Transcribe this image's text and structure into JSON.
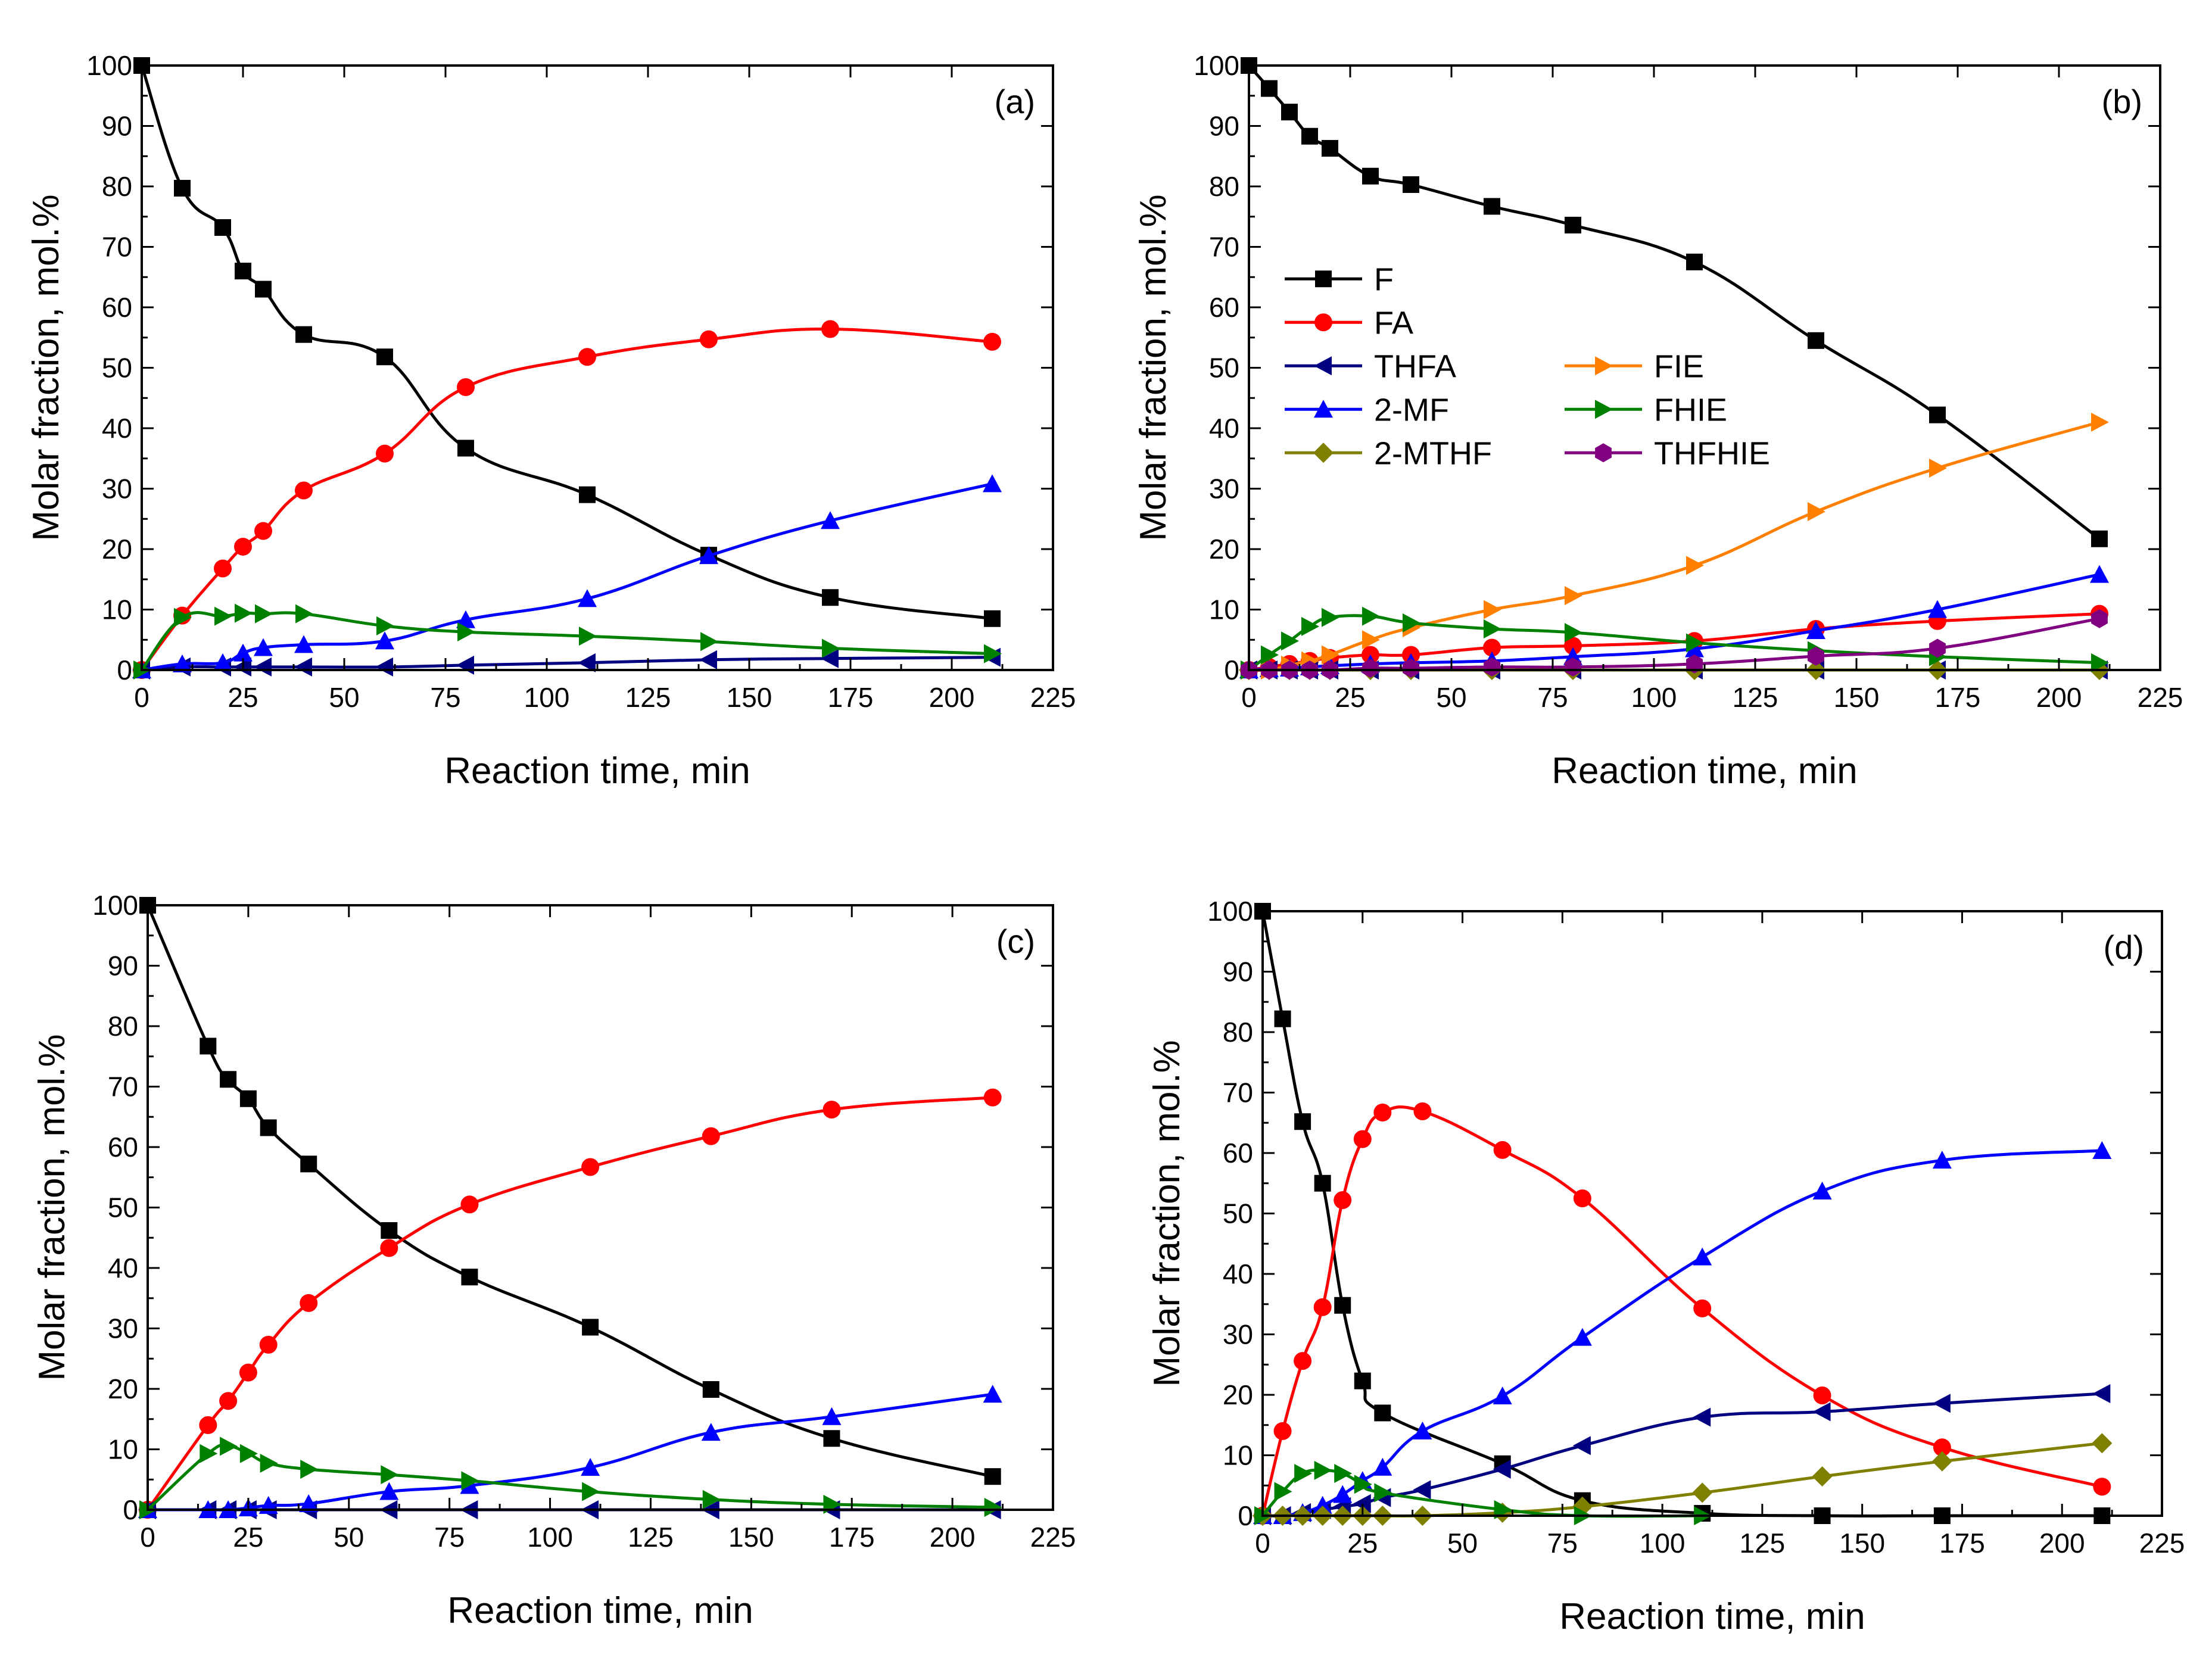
{
  "figure": {
    "legend": [
      {
        "key": "F",
        "label": "F"
      },
      {
        "key": "FA",
        "label": "FA"
      },
      {
        "key": "THFA",
        "label": "THFA"
      },
      {
        "key": "MF",
        "label": "2-MF"
      },
      {
        "key": "MTHF",
        "label": "2-MTHF"
      },
      {
        "key": "FIE",
        "label": "FIE"
      },
      {
        "key": "FHIE",
        "label": "FHIE"
      },
      {
        "key": "THFHIE",
        "label": "THFHIE"
      }
    ],
    "series_styles": {
      "F": {
        "color": "#000000",
        "marker": "square"
      },
      "FA": {
        "color": "#ff0000",
        "marker": "circle"
      },
      "THFA": {
        "color": "#000080",
        "marker": "triangle-left"
      },
      "MF": {
        "color": "#0000ff",
        "marker": "triangle-up"
      },
      "MTHF": {
        "color": "#808000",
        "marker": "diamond"
      },
      "FIE": {
        "color": "#ff8000",
        "marker": "triangle-right"
      },
      "FHIE": {
        "color": "#008000",
        "marker": "triangle-right"
      },
      "THFHIE": {
        "color": "#800080",
        "marker": "hexagon"
      }
    }
  },
  "chart_data": [
    {
      "type": "line",
      "panel": "(a)",
      "xlabel": "Reaction time, min",
      "ylabel": "Molar fraction, mol.%",
      "xlim": [
        0,
        225
      ],
      "ylim": [
        0,
        100
      ],
      "xticks": [
        0,
        25,
        50,
        75,
        100,
        125,
        150,
        175,
        200,
        225
      ],
      "yticks": [
        0,
        10,
        20,
        30,
        40,
        50,
        60,
        70,
        80,
        90,
        100
      ],
      "series": [
        {
          "key": "F",
          "name": "F",
          "x": [
            0,
            10,
            20,
            25,
            30,
            40,
            60,
            80,
            110,
            140,
            170,
            210
          ],
          "y": [
            100,
            79.7,
            73.2,
            66,
            63,
            55.5,
            51.8,
            36.7,
            29,
            19,
            12,
            8.5
          ]
        },
        {
          "key": "FA",
          "name": "FA",
          "x": [
            0,
            10,
            20,
            25,
            30,
            40,
            60,
            80,
            110,
            140,
            170,
            210
          ],
          "y": [
            0,
            9,
            16.8,
            20.4,
            23,
            29.7,
            35.8,
            46.8,
            51.8,
            54.7,
            56.4,
            54.3
          ]
        },
        {
          "key": "THFA",
          "name": "THFA",
          "x": [
            0,
            10,
            20,
            25,
            30,
            40,
            60,
            80,
            110,
            140,
            170,
            210
          ],
          "y": [
            0,
            0.5,
            0.5,
            0.5,
            0.5,
            0.5,
            0.5,
            0.8,
            1.2,
            1.7,
            1.9,
            2.1
          ]
        },
        {
          "key": "MF",
          "name": "2-MF",
          "x": [
            0,
            10,
            20,
            25,
            30,
            40,
            60,
            80,
            110,
            140,
            170,
            210
          ],
          "y": [
            0,
            1,
            1.2,
            2.8,
            3.7,
            4.2,
            4.8,
            8.3,
            11.8,
            18.9,
            24.7,
            30.8
          ]
        },
        {
          "key": "FHIE",
          "name": "FHIE",
          "x": [
            0,
            10,
            20,
            25,
            30,
            40,
            60,
            80,
            110,
            140,
            170,
            210
          ],
          "y": [
            0,
            8.7,
            8.9,
            9.4,
            9.3,
            9.3,
            7.3,
            6.3,
            5.6,
            4.7,
            3.6,
            2.7
          ]
        }
      ]
    },
    {
      "type": "line",
      "panel": "(b)",
      "xlabel": "Reaction time, min",
      "ylabel": "Molar fraction, mol.%",
      "xlim": [
        0,
        225
      ],
      "ylim": [
        0,
        100
      ],
      "xticks": [
        0,
        25,
        50,
        75,
        100,
        125,
        150,
        175,
        200,
        225
      ],
      "yticks": [
        0,
        10,
        20,
        30,
        40,
        50,
        60,
        70,
        80,
        90,
        100
      ],
      "legend_position": "center-left",
      "series": [
        {
          "key": "F",
          "name": "F",
          "x": [
            0,
            5,
            10,
            15,
            20,
            30,
            40,
            60,
            80,
            110,
            140,
            170,
            210
          ],
          "y": [
            100,
            96.2,
            92.3,
            88.3,
            86.3,
            81.7,
            80.3,
            76.7,
            73.6,
            67.5,
            54.5,
            42.2,
            21.7
          ]
        },
        {
          "key": "FA",
          "name": "FA",
          "x": [
            0,
            5,
            10,
            15,
            20,
            30,
            40,
            60,
            80,
            110,
            140,
            170,
            210
          ],
          "y": [
            0,
            0.5,
            1,
            1.5,
            2,
            2.5,
            2.5,
            3.7,
            4,
            4.8,
            6.8,
            8.1,
            9.3
          ]
        },
        {
          "key": "THFA",
          "name": "THFA",
          "x": [
            0,
            5,
            10,
            15,
            20,
            30,
            40,
            60,
            80,
            110,
            140,
            170,
            210
          ],
          "y": [
            0,
            0,
            0,
            0,
            0,
            0,
            0,
            0,
            0,
            0,
            0,
            0,
            0
          ]
        },
        {
          "key": "MF",
          "name": "2-MF",
          "x": [
            0,
            5,
            10,
            15,
            20,
            30,
            40,
            60,
            80,
            110,
            140,
            170,
            210
          ],
          "y": [
            0,
            0.2,
            0.3,
            0.5,
            0.7,
            1,
            1.2,
            1.5,
            2.2,
            3.5,
            6.5,
            10,
            15.8
          ]
        },
        {
          "key": "MTHF",
          "name": "2-MTHF",
          "x": [
            0,
            5,
            10,
            15,
            20,
            30,
            40,
            60,
            80,
            110,
            140,
            170,
            210
          ],
          "y": [
            0,
            0,
            0,
            0,
            0,
            0,
            0,
            0,
            0,
            0,
            0,
            0,
            0
          ]
        },
        {
          "key": "FIE",
          "name": "FIE",
          "x": [
            0,
            5,
            10,
            15,
            20,
            30,
            40,
            60,
            80,
            110,
            140,
            170,
            210
          ],
          "y": [
            0,
            0,
            0.8,
            1.5,
            2.5,
            5,
            7,
            10,
            12.3,
            17.3,
            26.2,
            33.4,
            41
          ]
        },
        {
          "key": "FHIE",
          "name": "FHIE",
          "x": [
            0,
            5,
            10,
            15,
            20,
            30,
            40,
            60,
            80,
            110,
            140,
            170,
            210
          ],
          "y": [
            0,
            2.5,
            4.8,
            7.2,
            8.7,
            8.9,
            7.8,
            6.8,
            6.2,
            4.5,
            3.2,
            2.2,
            1.2
          ]
        },
        {
          "key": "THFHIE",
          "name": "THFHIE",
          "x": [
            0,
            5,
            10,
            15,
            20,
            30,
            40,
            60,
            80,
            110,
            140,
            170,
            210
          ],
          "y": [
            0,
            0,
            0,
            0,
            0,
            0.3,
            0.3,
            0.5,
            0.5,
            1,
            2.3,
            3.6,
            8.5
          ]
        }
      ]
    },
    {
      "type": "line",
      "panel": "(c)",
      "xlabel": "Reaction time, min",
      "ylabel": "Molar fraction, mol.%",
      "xlim": [
        0,
        225
      ],
      "ylim": [
        0,
        100
      ],
      "xticks": [
        0,
        25,
        50,
        75,
        100,
        125,
        150,
        175,
        200,
        225
      ],
      "yticks": [
        0,
        10,
        20,
        30,
        40,
        50,
        60,
        70,
        80,
        90,
        100
      ],
      "series": [
        {
          "key": "F",
          "name": "F",
          "x": [
            0,
            15,
            20,
            25,
            30,
            40,
            60,
            80,
            110,
            140,
            170,
            210
          ],
          "y": [
            100,
            76.7,
            71.2,
            68,
            63.2,
            57.2,
            46.2,
            38.5,
            30.2,
            19.9,
            11.8,
            5.5
          ]
        },
        {
          "key": "FA",
          "name": "FA",
          "x": [
            0,
            15,
            20,
            25,
            30,
            40,
            60,
            80,
            110,
            140,
            170,
            210
          ],
          "y": [
            0,
            14,
            18,
            22.7,
            27.3,
            34.2,
            43.3,
            50.5,
            56.7,
            61.8,
            66.2,
            68.2
          ]
        },
        {
          "key": "THFA",
          "name": "THFA",
          "x": [
            0,
            15,
            20,
            25,
            30,
            40,
            60,
            80,
            110,
            140,
            170,
            210
          ],
          "y": [
            0,
            0,
            0,
            0,
            0,
            0,
            0,
            0,
            0,
            0,
            0,
            0
          ]
        },
        {
          "key": "MF",
          "name": "2-MF",
          "x": [
            0,
            15,
            20,
            25,
            30,
            40,
            60,
            80,
            110,
            140,
            170,
            210
          ],
          "y": [
            0,
            0,
            0,
            0.3,
            0.7,
            1,
            3,
            4,
            7,
            12.8,
            15.4,
            19.1
          ]
        },
        {
          "key": "FHIE",
          "name": "FHIE",
          "x": [
            0,
            15,
            20,
            25,
            30,
            40,
            60,
            80,
            110,
            140,
            170,
            210
          ],
          "y": [
            0,
            9.3,
            10.5,
            9.3,
            7.7,
            6.7,
            5.8,
            4.8,
            3,
            1.7,
            0.9,
            0.4
          ]
        }
      ]
    },
    {
      "type": "line",
      "panel": "(d)",
      "xlabel": "Reaction time, min",
      "ylabel": "Molar fraction, mol.%",
      "xlim": [
        0,
        225
      ],
      "ylim": [
        0,
        100
      ],
      "xticks": [
        0,
        25,
        50,
        75,
        100,
        125,
        150,
        175,
        200,
        225
      ],
      "yticks": [
        0,
        10,
        20,
        30,
        40,
        50,
        60,
        70,
        80,
        90,
        100
      ],
      "series": [
        {
          "key": "F",
          "name": "F",
          "x": [
            0,
            5,
            10,
            15,
            20,
            25,
            30,
            60,
            80,
            110,
            140,
            170,
            210
          ],
          "y": [
            100,
            82.2,
            65.2,
            55,
            34.8,
            22.3,
            17,
            8.6,
            2.5,
            0.4,
            0,
            0,
            0
          ]
        },
        {
          "key": "FA",
          "name": "FA",
          "x": [
            0,
            5,
            10,
            15,
            20,
            25,
            30,
            40,
            60,
            80,
            110,
            140,
            170,
            210
          ],
          "y": [
            0,
            14,
            25.6,
            34.5,
            52.2,
            62.3,
            66.7,
            66.9,
            60.5,
            52.5,
            34.3,
            19.9,
            11.3,
            4.8
          ]
        },
        {
          "key": "THFA",
          "name": "THFA",
          "x": [
            0,
            5,
            10,
            15,
            20,
            25,
            30,
            40,
            60,
            80,
            110,
            140,
            170,
            210
          ],
          "y": [
            0,
            0,
            0.5,
            1,
            1.5,
            2,
            3,
            4.3,
            7.7,
            11.6,
            16.3,
            17.2,
            18.6,
            20.2
          ]
        },
        {
          "key": "MF",
          "name": "2-MF",
          "x": [
            0,
            5,
            10,
            15,
            20,
            25,
            30,
            40,
            60,
            80,
            110,
            140,
            170,
            210
          ],
          "y": [
            0,
            0,
            0.5,
            1.7,
            3.5,
            5.8,
            8,
            14,
            19.8,
            29.5,
            42.8,
            53.7,
            58.8,
            60.4
          ]
        },
        {
          "key": "MTHF",
          "name": "2-MTHF",
          "x": [
            0,
            5,
            10,
            15,
            20,
            25,
            30,
            40,
            60,
            80,
            110,
            140,
            170,
            210
          ],
          "y": [
            0,
            0,
            0,
            0,
            0,
            0,
            0,
            0,
            0.5,
            1.5,
            3.8,
            6.5,
            9,
            12
          ]
        },
        {
          "key": "FHIE",
          "name": "FHIE",
          "x": [
            0,
            5,
            10,
            15,
            20,
            25,
            30,
            60,
            80,
            110
          ],
          "y": [
            0,
            4,
            7,
            7.5,
            7,
            5.2,
            3.8,
            1,
            0,
            0
          ]
        }
      ]
    }
  ]
}
